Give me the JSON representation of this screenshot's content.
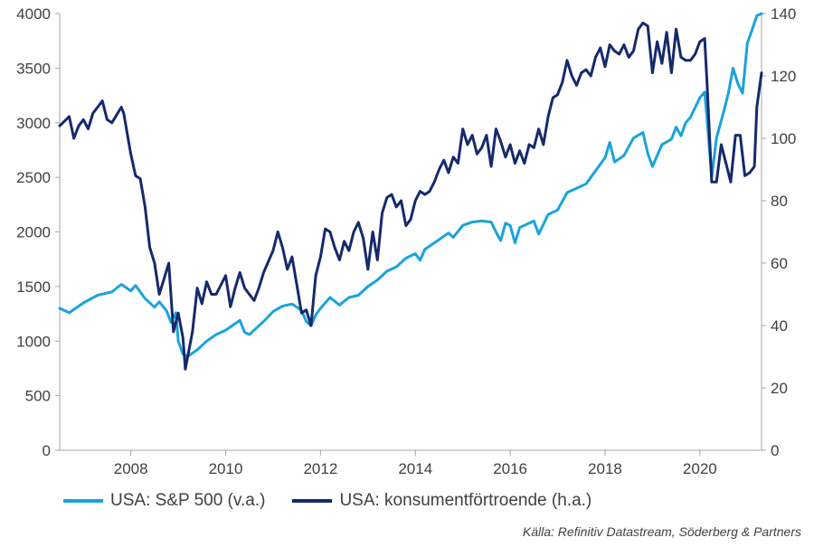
{
  "chart_data": {
    "type": "line",
    "x_range": [
      2006.5,
      2021.3
    ],
    "x_ticks": [
      "2008",
      "2010",
      "2012",
      "2014",
      "2016",
      "2018",
      "2020"
    ],
    "x_tick_values": [
      2008,
      2010,
      2012,
      2014,
      2016,
      2018,
      2020
    ],
    "y_left": {
      "ylim": [
        0,
        4000
      ],
      "ticks": [
        "0",
        "500",
        "1000",
        "1500",
        "2000",
        "2500",
        "3000",
        "3500",
        "4000"
      ]
    },
    "y_right": {
      "ylim": [
        0,
        140
      ],
      "ticks": [
        "0",
        "20",
        "40",
        "60",
        "80",
        "100",
        "120",
        "140"
      ]
    },
    "grid": false,
    "legend_position": "bottom-left",
    "series": [
      {
        "name": "USA: S&P 500 (v.a.)",
        "axis": "left",
        "color": "#1aa3db",
        "points": [
          [
            2006.5,
            1300
          ],
          [
            2006.7,
            1260
          ],
          [
            2007.0,
            1350
          ],
          [
            2007.3,
            1420
          ],
          [
            2007.6,
            1450
          ],
          [
            2007.8,
            1520
          ],
          [
            2008.0,
            1460
          ],
          [
            2008.1,
            1510
          ],
          [
            2008.3,
            1390
          ],
          [
            2008.5,
            1310
          ],
          [
            2008.6,
            1360
          ],
          [
            2008.75,
            1280
          ],
          [
            2008.85,
            1170
          ],
          [
            2008.95,
            1260
          ],
          [
            2009.0,
            1000
          ],
          [
            2009.1,
            880
          ],
          [
            2009.2,
            860
          ],
          [
            2009.4,
            920
          ],
          [
            2009.6,
            1000
          ],
          [
            2009.8,
            1060
          ],
          [
            2010.0,
            1100
          ],
          [
            2010.2,
            1160
          ],
          [
            2010.3,
            1190
          ],
          [
            2010.4,
            1080
          ],
          [
            2010.5,
            1060
          ],
          [
            2010.6,
            1100
          ],
          [
            2010.7,
            1140
          ],
          [
            2010.8,
            1180
          ],
          [
            2011.0,
            1270
          ],
          [
            2011.2,
            1320
          ],
          [
            2011.4,
            1340
          ],
          [
            2011.6,
            1280
          ],
          [
            2011.7,
            1180
          ],
          [
            2011.8,
            1140
          ],
          [
            2011.9,
            1240
          ],
          [
            2012.0,
            1300
          ],
          [
            2012.2,
            1400
          ],
          [
            2012.4,
            1330
          ],
          [
            2012.6,
            1400
          ],
          [
            2012.8,
            1420
          ],
          [
            2013.0,
            1500
          ],
          [
            2013.2,
            1560
          ],
          [
            2013.4,
            1640
          ],
          [
            2013.6,
            1680
          ],
          [
            2013.8,
            1760
          ],
          [
            2014.0,
            1800
          ],
          [
            2014.1,
            1740
          ],
          [
            2014.2,
            1840
          ],
          [
            2014.5,
            1930
          ],
          [
            2014.7,
            1990
          ],
          [
            2014.8,
            1950
          ],
          [
            2015.0,
            2060
          ],
          [
            2015.2,
            2090
          ],
          [
            2015.4,
            2100
          ],
          [
            2015.6,
            2090
          ],
          [
            2015.7,
            2000
          ],
          [
            2015.8,
            1920
          ],
          [
            2015.9,
            2080
          ],
          [
            2016.0,
            2060
          ],
          [
            2016.1,
            1900
          ],
          [
            2016.2,
            2040
          ],
          [
            2016.5,
            2100
          ],
          [
            2016.6,
            1980
          ],
          [
            2016.8,
            2160
          ],
          [
            2017.0,
            2200
          ],
          [
            2017.2,
            2360
          ],
          [
            2017.4,
            2400
          ],
          [
            2017.6,
            2440
          ],
          [
            2017.8,
            2560
          ],
          [
            2018.0,
            2680
          ],
          [
            2018.1,
            2820
          ],
          [
            2018.2,
            2640
          ],
          [
            2018.4,
            2700
          ],
          [
            2018.6,
            2860
          ],
          [
            2018.8,
            2910
          ],
          [
            2018.9,
            2720
          ],
          [
            2019.0,
            2600
          ],
          [
            2019.2,
            2800
          ],
          [
            2019.4,
            2850
          ],
          [
            2019.5,
            2960
          ],
          [
            2019.6,
            2880
          ],
          [
            2019.7,
            3000
          ],
          [
            2019.8,
            3050
          ],
          [
            2020.0,
            3230
          ],
          [
            2020.1,
            3280
          ],
          [
            2020.15,
            3040
          ],
          [
            2020.25,
            2500
          ],
          [
            2020.35,
            2860
          ],
          [
            2020.5,
            3100
          ],
          [
            2020.6,
            3270
          ],
          [
            2020.7,
            3500
          ],
          [
            2020.8,
            3360
          ],
          [
            2020.9,
            3270
          ],
          [
            2021.0,
            3730
          ],
          [
            2021.1,
            3850
          ],
          [
            2021.2,
            3980
          ],
          [
            2021.3,
            4180
          ]
        ]
      },
      {
        "name": "USA: konsumentförtroende (h.a.)",
        "axis": "right",
        "color": "#152a6b",
        "points": [
          [
            2006.5,
            104
          ],
          [
            2006.7,
            107
          ],
          [
            2006.8,
            100
          ],
          [
            2006.9,
            104
          ],
          [
            2007.0,
            106
          ],
          [
            2007.1,
            103
          ],
          [
            2007.2,
            108
          ],
          [
            2007.4,
            112
          ],
          [
            2007.5,
            106
          ],
          [
            2007.6,
            105
          ],
          [
            2007.8,
            110
          ],
          [
            2007.85,
            108
          ],
          [
            2008.0,
            95
          ],
          [
            2008.1,
            88
          ],
          [
            2008.2,
            87
          ],
          [
            2008.3,
            78
          ],
          [
            2008.4,
            65
          ],
          [
            2008.5,
            60
          ],
          [
            2008.6,
            50
          ],
          [
            2008.7,
            55
          ],
          [
            2008.8,
            60
          ],
          [
            2008.9,
            38
          ],
          [
            2009.0,
            44
          ],
          [
            2009.1,
            36
          ],
          [
            2009.15,
            26
          ],
          [
            2009.3,
            38
          ],
          [
            2009.4,
            52
          ],
          [
            2009.5,
            47
          ],
          [
            2009.6,
            54
          ],
          [
            2009.7,
            50
          ],
          [
            2009.8,
            50
          ],
          [
            2010.0,
            56
          ],
          [
            2010.1,
            46
          ],
          [
            2010.2,
            52
          ],
          [
            2010.3,
            57
          ],
          [
            2010.4,
            52
          ],
          [
            2010.5,
            50
          ],
          [
            2010.6,
            48
          ],
          [
            2010.7,
            52
          ],
          [
            2010.8,
            57
          ],
          [
            2011.0,
            64
          ],
          [
            2011.1,
            70
          ],
          [
            2011.2,
            65
          ],
          [
            2011.3,
            58
          ],
          [
            2011.4,
            62
          ],
          [
            2011.5,
            53
          ],
          [
            2011.6,
            44
          ],
          [
            2011.7,
            45
          ],
          [
            2011.8,
            40
          ],
          [
            2011.9,
            56
          ],
          [
            2012.0,
            62
          ],
          [
            2012.1,
            71
          ],
          [
            2012.2,
            70
          ],
          [
            2012.3,
            65
          ],
          [
            2012.4,
            61
          ],
          [
            2012.5,
            67
          ],
          [
            2012.6,
            64
          ],
          [
            2012.7,
            70
          ],
          [
            2012.8,
            73
          ],
          [
            2012.9,
            68
          ],
          [
            2013.0,
            58
          ],
          [
            2013.1,
            70
          ],
          [
            2013.2,
            61
          ],
          [
            2013.3,
            76
          ],
          [
            2013.4,
            81
          ],
          [
            2013.5,
            82
          ],
          [
            2013.6,
            78
          ],
          [
            2013.7,
            80
          ],
          [
            2013.8,
            72
          ],
          [
            2013.9,
            74
          ],
          [
            2014.0,
            80
          ],
          [
            2014.1,
            83
          ],
          [
            2014.2,
            82
          ],
          [
            2014.3,
            83
          ],
          [
            2014.4,
            86
          ],
          [
            2014.5,
            90
          ],
          [
            2014.6,
            93
          ],
          [
            2014.7,
            89
          ],
          [
            2014.8,
            94
          ],
          [
            2014.9,
            92
          ],
          [
            2015.0,
            103
          ],
          [
            2015.1,
            98
          ],
          [
            2015.2,
            101
          ],
          [
            2015.3,
            95
          ],
          [
            2015.4,
            97
          ],
          [
            2015.5,
            101
          ],
          [
            2015.6,
            91
          ],
          [
            2015.7,
            103
          ],
          [
            2015.8,
            99
          ],
          [
            2015.9,
            94
          ],
          [
            2016.0,
            98
          ],
          [
            2016.1,
            92
          ],
          [
            2016.2,
            96
          ],
          [
            2016.3,
            92
          ],
          [
            2016.4,
            98
          ],
          [
            2016.5,
            97
          ],
          [
            2016.6,
            103
          ],
          [
            2016.7,
            98
          ],
          [
            2016.8,
            107
          ],
          [
            2016.9,
            113
          ],
          [
            2017.0,
            114
          ],
          [
            2017.1,
            118
          ],
          [
            2017.2,
            125
          ],
          [
            2017.3,
            120
          ],
          [
            2017.4,
            117
          ],
          [
            2017.5,
            121
          ],
          [
            2017.6,
            122
          ],
          [
            2017.7,
            120
          ],
          [
            2017.8,
            126
          ],
          [
            2017.9,
            129
          ],
          [
            2018.0,
            123
          ],
          [
            2018.1,
            130
          ],
          [
            2018.2,
            128
          ],
          [
            2018.3,
            127
          ],
          [
            2018.4,
            130
          ],
          [
            2018.5,
            126
          ],
          [
            2018.6,
            128
          ],
          [
            2018.7,
            135
          ],
          [
            2018.8,
            137
          ],
          [
            2018.9,
            136
          ],
          [
            2019.0,
            121
          ],
          [
            2019.1,
            131
          ],
          [
            2019.2,
            124
          ],
          [
            2019.3,
            134
          ],
          [
            2019.4,
            121
          ],
          [
            2019.5,
            135
          ],
          [
            2019.6,
            126
          ],
          [
            2019.7,
            125
          ],
          [
            2019.8,
            125
          ],
          [
            2019.9,
            127
          ],
          [
            2020.0,
            131
          ],
          [
            2020.1,
            132
          ],
          [
            2020.15,
            118
          ],
          [
            2020.25,
            86
          ],
          [
            2020.35,
            86
          ],
          [
            2020.45,
            98
          ],
          [
            2020.55,
            92
          ],
          [
            2020.65,
            86
          ],
          [
            2020.75,
            101
          ],
          [
            2020.85,
            101
          ],
          [
            2020.95,
            88
          ],
          [
            2021.05,
            89
          ],
          [
            2021.15,
            91
          ],
          [
            2021.2,
            110
          ],
          [
            2021.3,
            121
          ]
        ]
      }
    ]
  },
  "source_text": "Källa: Refinitiv Datastream, Söderberg & Partners"
}
